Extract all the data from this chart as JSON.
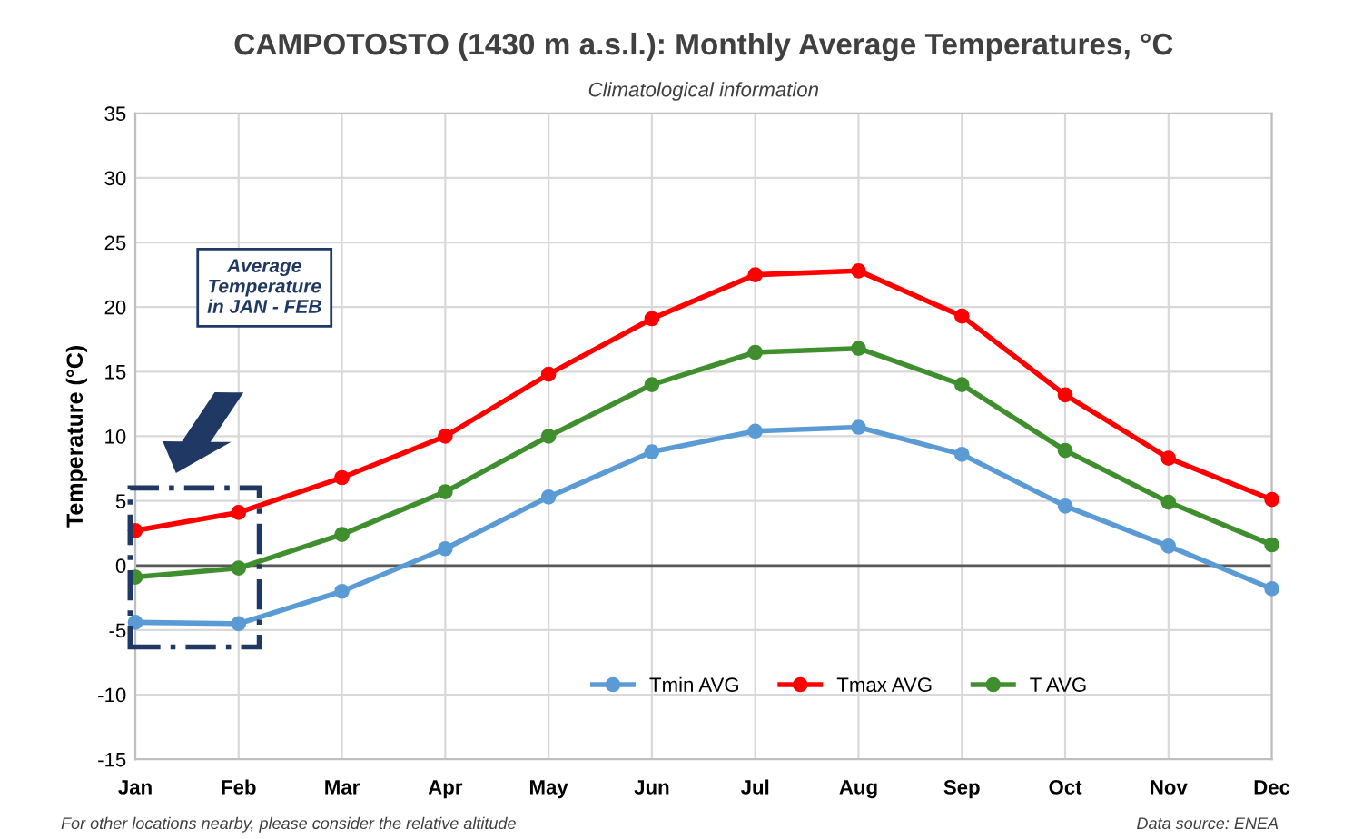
{
  "chart_data": {
    "type": "line",
    "title": "CAMPOTOSTO (1430 m a.s.l.): Monthly Average Temperatures, °C",
    "subtitle": "Climatological information",
    "ylabel": "Temperature (°C)",
    "categories": [
      "Jan",
      "Feb",
      "Mar",
      "Apr",
      "May",
      "Jun",
      "Jul",
      "Aug",
      "Sep",
      "Oct",
      "Nov",
      "Dec"
    ],
    "series": [
      {
        "name": "Tmin AVG",
        "color": "#5b9bd5",
        "values": [
          -4.4,
          -4.5,
          -2.0,
          1.3,
          5.3,
          8.8,
          10.4,
          10.7,
          8.6,
          4.6,
          1.5,
          -1.8
        ]
      },
      {
        "name": "Tmax AVG",
        "color": "#ff0000",
        "values": [
          2.7,
          4.1,
          6.8,
          10.0,
          14.8,
          19.1,
          22.5,
          22.8,
          19.3,
          13.2,
          8.3,
          5.1
        ]
      },
      {
        "name": "T AVG",
        "color": "#3f8f2f",
        "values": [
          -0.9,
          -0.2,
          2.4,
          5.7,
          10.0,
          14.0,
          16.5,
          16.8,
          14.0,
          8.9,
          4.9,
          1.6
        ]
      }
    ],
    "ylim": [
      -15,
      35
    ],
    "yticks": [
      -15,
      -10,
      -5,
      0,
      5,
      10,
      15,
      20,
      25,
      30,
      35
    ],
    "ref_lines": [
      {
        "axis": "y",
        "value": 0,
        "color": "#595959"
      }
    ],
    "annotations": [
      "Average Temperature in JAN - FEB",
      "For other locations nearby, please consider the relative altitude",
      "Data source: ENEA"
    ],
    "grid": true,
    "legend": "bottom right",
    "marker": "circle",
    "line_style": "solid"
  }
}
